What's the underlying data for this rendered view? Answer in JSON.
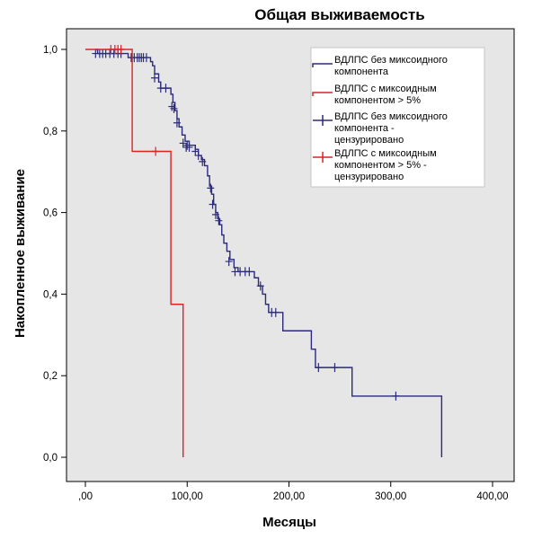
{
  "chart_data": {
    "type": "line",
    "title": "Общая выживаемость",
    "xlabel": "Месяцы",
    "ylabel": "Накопленное выживание",
    "xlim": [
      0,
      400
    ],
    "ylim": [
      0,
      1
    ],
    "xticks": [
      0,
      100,
      200,
      300,
      400
    ],
    "xtick_labels": [
      ",00",
      "100,00",
      "200,00",
      "300,00",
      "400,00"
    ],
    "yticks": [
      0,
      0.2,
      0.4,
      0.6,
      0.8,
      1.0
    ],
    "ytick_labels": [
      "0,0",
      "0,2",
      "0,4",
      "0,6",
      "0,8",
      "1,0"
    ],
    "grid": false,
    "legend_position": "top-right",
    "series": [
      {
        "name": "ВДЛПС без миксоидного компонента",
        "color": "#2b2b7a",
        "step": [
          [
            10,
            1.0
          ],
          [
            12,
            0.99
          ],
          [
            38,
            0.99
          ],
          [
            42,
            0.98
          ],
          [
            62,
            0.98
          ],
          [
            64,
            0.97
          ],
          [
            66,
            0.96
          ],
          [
            68,
            0.94
          ],
          [
            72,
            0.92
          ],
          [
            74,
            0.905
          ],
          [
            82,
            0.905
          ],
          [
            84,
            0.89
          ],
          [
            86,
            0.87
          ],
          [
            88,
            0.85
          ],
          [
            90,
            0.83
          ],
          [
            92,
            0.81
          ],
          [
            95,
            0.79
          ],
          [
            98,
            0.775
          ],
          [
            102,
            0.765
          ],
          [
            108,
            0.755
          ],
          [
            111,
            0.74
          ],
          [
            114,
            0.73
          ],
          [
            117,
            0.715
          ],
          [
            120,
            0.69
          ],
          [
            122,
            0.665
          ],
          [
            124,
            0.645
          ],
          [
            126,
            0.62
          ],
          [
            128,
            0.6
          ],
          [
            130,
            0.585
          ],
          [
            132,
            0.57
          ],
          [
            134,
            0.545
          ],
          [
            136,
            0.525
          ],
          [
            139,
            0.505
          ],
          [
            142,
            0.485
          ],
          [
            146,
            0.465
          ],
          [
            150,
            0.455
          ],
          [
            166,
            0.44
          ],
          [
            170,
            0.42
          ],
          [
            174,
            0.4
          ],
          [
            177,
            0.375
          ],
          [
            180,
            0.355
          ],
          [
            194,
            0.31
          ],
          [
            222,
            0.265
          ],
          [
            226,
            0.22
          ],
          [
            262,
            0.15
          ],
          [
            350,
            0.15
          ],
          [
            350,
            0.0
          ]
        ],
        "censored": [
          [
            10,
            0.99
          ],
          [
            14,
            0.99
          ],
          [
            17,
            0.99
          ],
          [
            20,
            0.99
          ],
          [
            24,
            0.99
          ],
          [
            28,
            0.99
          ],
          [
            32,
            0.99
          ],
          [
            35,
            0.99
          ],
          [
            45,
            0.98
          ],
          [
            48,
            0.98
          ],
          [
            51,
            0.98
          ],
          [
            53,
            0.98
          ],
          [
            55,
            0.98
          ],
          [
            57,
            0.98
          ],
          [
            60,
            0.98
          ],
          [
            68,
            0.93
          ],
          [
            74,
            0.905
          ],
          [
            79,
            0.905
          ],
          [
            85,
            0.86
          ],
          [
            87,
            0.855
          ],
          [
            90,
            0.82
          ],
          [
            96,
            0.77
          ],
          [
            99,
            0.76
          ],
          [
            100,
            0.765
          ],
          [
            102,
            0.76
          ],
          [
            108,
            0.75
          ],
          [
            111,
            0.74
          ],
          [
            115,
            0.725
          ],
          [
            123,
            0.66
          ],
          [
            125,
            0.62
          ],
          [
            128,
            0.595
          ],
          [
            131,
            0.58
          ],
          [
            141,
            0.48
          ],
          [
            147,
            0.455
          ],
          [
            152,
            0.455
          ],
          [
            157,
            0.455
          ],
          [
            161,
            0.455
          ],
          [
            172,
            0.42
          ],
          [
            183,
            0.355
          ],
          [
            187,
            0.355
          ],
          [
            229,
            0.22
          ],
          [
            245,
            0.22
          ],
          [
            305,
            0.15
          ]
        ]
      },
      {
        "name": "ВДЛПС с миксоидным компонентом > 5%",
        "color": "#dd2222",
        "step": [
          [
            0,
            1.0
          ],
          [
            46,
            1.0
          ],
          [
            46,
            0.75
          ],
          [
            84,
            0.75
          ],
          [
            84,
            0.375
          ],
          [
            96,
            0.375
          ],
          [
            96,
            0.0
          ]
        ],
        "censored": [
          [
            25,
            1.0
          ],
          [
            29,
            1.0
          ],
          [
            32,
            1.0
          ],
          [
            35,
            1.0
          ],
          [
            69,
            0.75
          ]
        ]
      }
    ],
    "legend": [
      {
        "label": "ВДЛПС без миксоидного компонента",
        "lines": [
          "ВДЛПС без миксоидного",
          "компонента"
        ],
        "color": "#2b2b7a",
        "marker": "line"
      },
      {
        "label": "ВДЛПС с миксоидным компонентом > 5%",
        "lines": [
          "ВДЛПС с миксоидным",
          "компонентом > 5%"
        ],
        "color": "#dd2222",
        "marker": "line"
      },
      {
        "label": "ВДЛПС без миксоидного компонента - цензурировано",
        "lines": [
          "ВДЛПС без миксоидного",
          "компонента -",
          "цензурировано"
        ],
        "color": "#2b2b7a",
        "marker": "plus"
      },
      {
        "label": "ВДЛПС с миксоидным компонентом > 5% - цензурировано",
        "lines": [
          "ВДЛПС с миксоидным",
          "компонентом > 5% -",
          "цензурировано"
        ],
        "color": "#dd2222",
        "marker": "plus"
      }
    ]
  },
  "colors": {
    "plot_background": "#e6e6e6",
    "page_background": "#ffffff",
    "legend_background": "#ffffff"
  }
}
